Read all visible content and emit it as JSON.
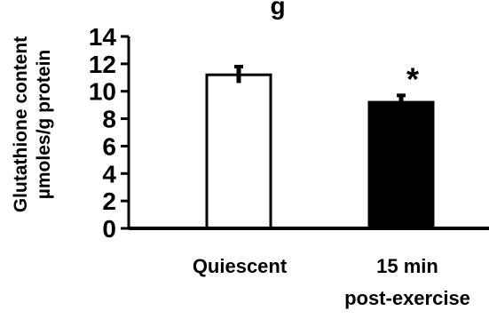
{
  "chart_data": {
    "type": "bar",
    "title": "g",
    "ylabel_lines": [
      "Glutathione content",
      "µmoles/g protein"
    ],
    "xlabel": "",
    "categories": [
      {
        "lines": [
          "Quiescent"
        ]
      },
      {
        "lines": [
          "15 min",
          "post-exercise"
        ]
      }
    ],
    "values": [
      11.2,
      9.2
    ],
    "errors": [
      0.6,
      0.5
    ],
    "bar_fill": [
      "#ffffff",
      "#000000"
    ],
    "bar_stroke": "#000000",
    "ylim": [
      0,
      14
    ],
    "yticks": [
      0,
      2,
      4,
      6,
      8,
      10,
      12,
      14
    ],
    "annotations": [
      {
        "category_index": 1,
        "text": "*"
      }
    ],
    "grid": false,
    "legend": "none"
  }
}
